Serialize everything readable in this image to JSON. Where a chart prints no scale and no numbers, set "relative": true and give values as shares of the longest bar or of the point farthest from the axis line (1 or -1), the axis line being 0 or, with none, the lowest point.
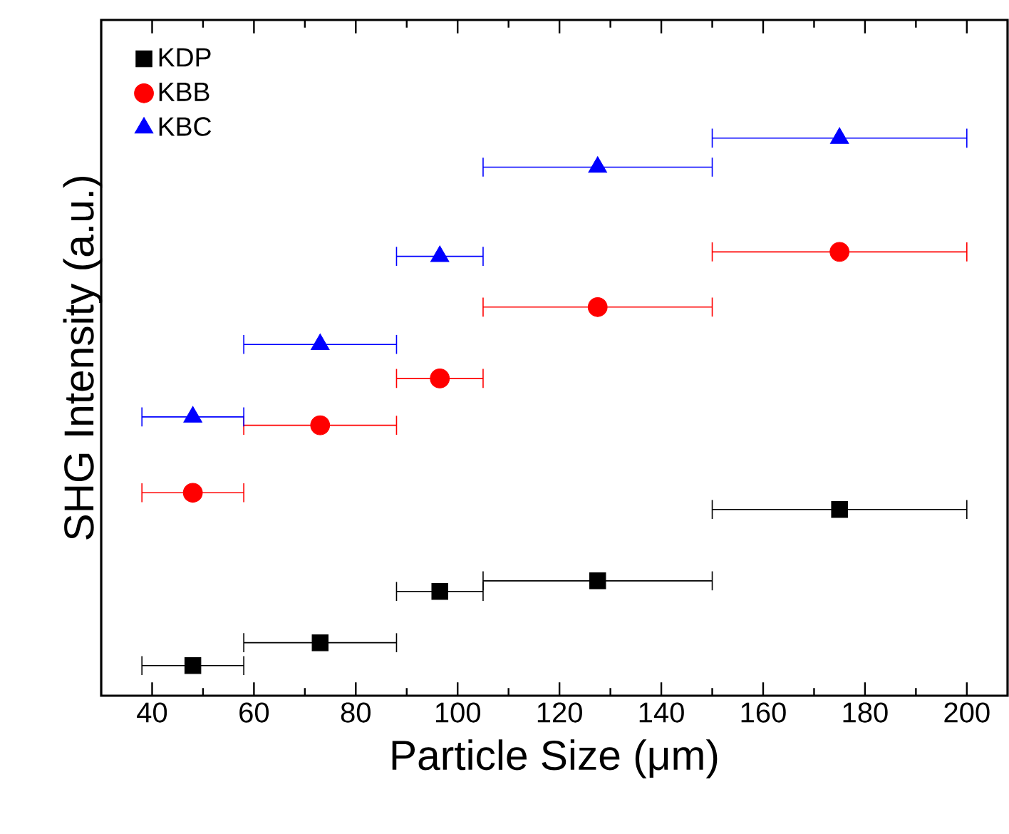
{
  "chart_data": {
    "type": "scatter",
    "relative": true,
    "xlabel": "Particle Size (μm)",
    "ylabel": "SHG Intensity (a.u.)",
    "x": [
      48,
      73,
      96.5,
      127.5,
      175
    ],
    "xlim": [
      30,
      208
    ],
    "xticks": [
      40,
      60,
      80,
      100,
      120,
      140,
      160,
      180,
      200
    ],
    "legend": "top left",
    "series": [
      {
        "name": "KDP",
        "color": "#000000",
        "marker": "square",
        "values": [
          0.054,
          0.095,
          0.187,
          0.206,
          0.334
        ],
        "xerrors": [
          [
            38,
            58
          ],
          [
            58,
            88
          ],
          [
            88,
            105
          ],
          [
            105,
            150
          ],
          [
            150,
            200
          ]
        ]
      },
      {
        "name": "KBB",
        "color": "#ff0000",
        "marker": "circle",
        "values": [
          0.364,
          0.485,
          0.569,
          0.697,
          0.796
        ],
        "xerrors": [
          [
            38,
            58
          ],
          [
            58,
            88
          ],
          [
            88,
            105
          ],
          [
            105,
            150
          ],
          [
            150,
            200
          ]
        ]
      },
      {
        "name": "KBC",
        "color": "#0000ff",
        "marker": "triangle",
        "values": [
          0.5,
          0.63,
          0.788,
          0.948,
          1
        ],
        "xerrors": [
          [
            38,
            58
          ],
          [
            58,
            88
          ],
          [
            88,
            105
          ],
          [
            105,
            150
          ],
          [
            150,
            200
          ]
        ]
      }
    ]
  }
}
